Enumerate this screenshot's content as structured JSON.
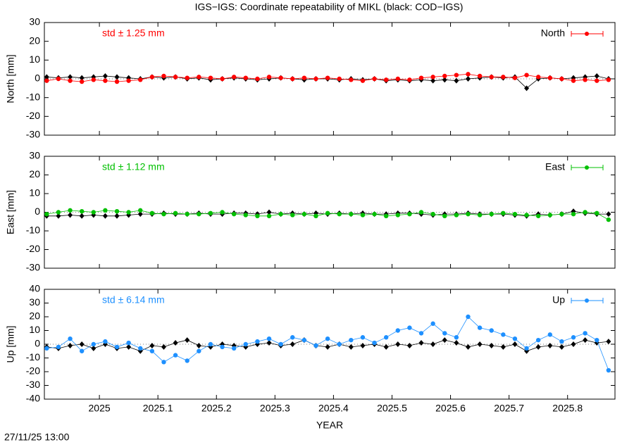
{
  "title": "IGS−IGS: Coordinate repeatability of MIKL (black: COD−IGS)",
  "footer": "27/11/25 13:00",
  "chart_data": [
    {
      "type": "line",
      "ylabel": "North [mm]",
      "annotation": "std ± 1.25 mm",
      "xlim": [
        2024.906,
        2025.881
      ],
      "xticks": [
        2025,
        2025.1,
        2025.2,
        2025.3,
        2025.4,
        2025.5,
        2025.6,
        2025.7,
        2025.8
      ],
      "ylim": [
        -30,
        30
      ],
      "yticks": [
        -30,
        -20,
        -10,
        0,
        10,
        20,
        30
      ],
      "zeroaxis": true,
      "legend": "top-right",
      "x": [
        2024.91,
        2024.93,
        2024.95,
        2024.97,
        2024.99,
        2025.01,
        2025.03,
        2025.05,
        2025.07,
        2025.09,
        2025.11,
        2025.13,
        2025.15,
        2025.17,
        2025.19,
        2025.21,
        2025.23,
        2025.25,
        2025.27,
        2025.29,
        2025.31,
        2025.33,
        2025.35,
        2025.37,
        2025.39,
        2025.41,
        2025.43,
        2025.45,
        2025.47,
        2025.49,
        2025.51,
        2025.53,
        2025.55,
        2025.57,
        2025.59,
        2025.61,
        2025.63,
        2025.65,
        2025.67,
        2025.69,
        2025.71,
        2025.73,
        2025.75,
        2025.77,
        2025.79,
        2025.81,
        2025.83,
        2025.85,
        2025.87
      ],
      "series": [
        {
          "color": "#000000",
          "marker": "diamond",
          "values": [
            1,
            0.5,
            1,
            0.5,
            1,
            1.5,
            1,
            0.5,
            0,
            1,
            0.5,
            1,
            0,
            0.5,
            -0.5,
            0,
            0.5,
            0,
            -0.5,
            0,
            0.5,
            0,
            -0.5,
            0,
            0,
            -0.5,
            0,
            -0.5,
            0,
            -1,
            -0.5,
            -1,
            -0.5,
            -1,
            -0.5,
            -1,
            0,
            0.5,
            1,
            0.5,
            1,
            -5,
            0,
            0.5,
            0,
            0.5,
            1,
            1.5,
            0
          ]
        },
        {
          "name": "North",
          "color": "#ff0000",
          "marker": "circle",
          "values": [
            -1,
            0,
            -1,
            -1.5,
            -0.5,
            -1,
            -1.5,
            -1,
            -0.5,
            1,
            1.5,
            1,
            0.5,
            1,
            0.5,
            0,
            1,
            0.5,
            0,
            1,
            0.5,
            0,
            0.5,
            0,
            0.5,
            0,
            -0.5,
            -1,
            0,
            -0.5,
            0,
            -0.5,
            0.5,
            1,
            1.5,
            2,
            2.5,
            1.5,
            1,
            1,
            0.5,
            2,
            1,
            0.5,
            0,
            -1,
            -0.5,
            -1,
            -0.5
          ]
        }
      ]
    },
    {
      "type": "line",
      "ylabel": "East [mm]",
      "annotation": "std ± 1.12 mm",
      "xlim": [
        2024.906,
        2025.881
      ],
      "xticks": [
        2025,
        2025.1,
        2025.2,
        2025.3,
        2025.4,
        2025.5,
        2025.6,
        2025.7,
        2025.8
      ],
      "ylim": [
        -30,
        30
      ],
      "yticks": [
        -30,
        -20,
        -10,
        0,
        10,
        20,
        30
      ],
      "zeroaxis": true,
      "legend": "top-right",
      "x": [
        2024.91,
        2024.93,
        2024.95,
        2024.97,
        2024.99,
        2025.01,
        2025.03,
        2025.05,
        2025.07,
        2025.09,
        2025.11,
        2025.13,
        2025.15,
        2025.17,
        2025.19,
        2025.21,
        2025.23,
        2025.25,
        2025.27,
        2025.29,
        2025.31,
        2025.33,
        2025.35,
        2025.37,
        2025.39,
        2025.41,
        2025.43,
        2025.45,
        2025.47,
        2025.49,
        2025.51,
        2025.53,
        2025.55,
        2025.57,
        2025.59,
        2025.61,
        2025.63,
        2025.65,
        2025.67,
        2025.69,
        2025.71,
        2025.73,
        2025.75,
        2025.77,
        2025.79,
        2025.81,
        2025.83,
        2025.85,
        2025.87
      ],
      "series": [
        {
          "color": "#000000",
          "marker": "diamond",
          "values": [
            -2,
            -2,
            -1.5,
            -2,
            -1.5,
            -2,
            -2,
            -1.5,
            -1,
            -1,
            -0.5,
            -1,
            -1,
            -0.5,
            -1,
            -1,
            -0.5,
            -0.5,
            -1,
            0,
            -1,
            -0.5,
            -1,
            -0.5,
            -1,
            -0.5,
            -1,
            -0.5,
            -1,
            -1,
            -0.5,
            -0.5,
            -1,
            -1.5,
            -1,
            -1,
            -0.5,
            -1,
            -1,
            -1,
            -1.5,
            -2,
            -1,
            -1.5,
            -1,
            0.5,
            -0.5,
            -1,
            -1
          ]
        },
        {
          "name": "East",
          "color": "#00c000",
          "marker": "circle",
          "values": [
            -1,
            0,
            1,
            0.5,
            0,
            1,
            0.5,
            0,
            1,
            -0.5,
            -1,
            -0.5,
            -1,
            -1,
            -0.5,
            0,
            -1,
            -1.5,
            -2,
            -2,
            -1,
            -1.5,
            -1,
            -2,
            -0.5,
            -1,
            -1,
            -1.5,
            -1,
            -2,
            -1.5,
            -1,
            0,
            -1,
            -2,
            -1.5,
            -1,
            -1.5,
            -1,
            -0.5,
            -1,
            -1.5,
            -2,
            -1.5,
            -1,
            -1,
            0,
            -0.5,
            -4
          ]
        }
      ]
    },
    {
      "type": "line",
      "ylabel": "Up [mm]",
      "xlabel": "YEAR",
      "annotation": "std ± 6.14 mm",
      "xlim": [
        2024.906,
        2025.881
      ],
      "xticks": [
        2025,
        2025.1,
        2025.2,
        2025.3,
        2025.4,
        2025.5,
        2025.6,
        2025.7,
        2025.8
      ],
      "ylim": [
        -40,
        40
      ],
      "yticks": [
        -40,
        -30,
        -20,
        -10,
        0,
        10,
        20,
        30,
        40
      ],
      "zeroaxis": true,
      "legend": "top-right",
      "x": [
        2024.91,
        2024.93,
        2024.95,
        2024.97,
        2024.99,
        2025.01,
        2025.03,
        2025.05,
        2025.07,
        2025.09,
        2025.11,
        2025.13,
        2025.15,
        2025.17,
        2025.19,
        2025.21,
        2025.23,
        2025.25,
        2025.27,
        2025.29,
        2025.31,
        2025.33,
        2025.35,
        2025.37,
        2025.39,
        2025.41,
        2025.43,
        2025.45,
        2025.47,
        2025.49,
        2025.51,
        2025.53,
        2025.55,
        2025.57,
        2025.59,
        2025.61,
        2025.63,
        2025.65,
        2025.67,
        2025.69,
        2025.71,
        2025.73,
        2025.75,
        2025.77,
        2025.79,
        2025.81,
        2025.83,
        2025.85,
        2025.87
      ],
      "series": [
        {
          "color": "#000000",
          "marker": "diamond",
          "values": [
            -2,
            -3,
            -1,
            0,
            -3,
            0,
            -3,
            -2,
            -5,
            -1,
            -2,
            1,
            3,
            -1,
            -2,
            0,
            -1,
            -2,
            0,
            1,
            -1,
            0,
            3,
            -1,
            -2,
            0,
            -2,
            -1,
            0,
            -2,
            0,
            -1,
            1,
            0,
            3,
            1,
            -2,
            0,
            -1,
            -2,
            0,
            -5,
            -2,
            -1,
            -2,
            0,
            3,
            1,
            2
          ]
        },
        {
          "name": "Up",
          "color": "#1e90ff",
          "marker": "circle",
          "values": [
            -3,
            -2,
            4,
            -5,
            0,
            2,
            -2,
            1,
            -3,
            -5,
            -13,
            -8,
            -12,
            -5,
            0,
            -2,
            -3,
            0,
            2,
            4,
            0,
            5,
            3,
            -1,
            4,
            0,
            3,
            5,
            1,
            5,
            10,
            12,
            8,
            15,
            8,
            5,
            20,
            12,
            10,
            7,
            4,
            -3,
            3,
            7,
            2,
            5,
            8,
            3,
            -19
          ]
        }
      ]
    }
  ]
}
